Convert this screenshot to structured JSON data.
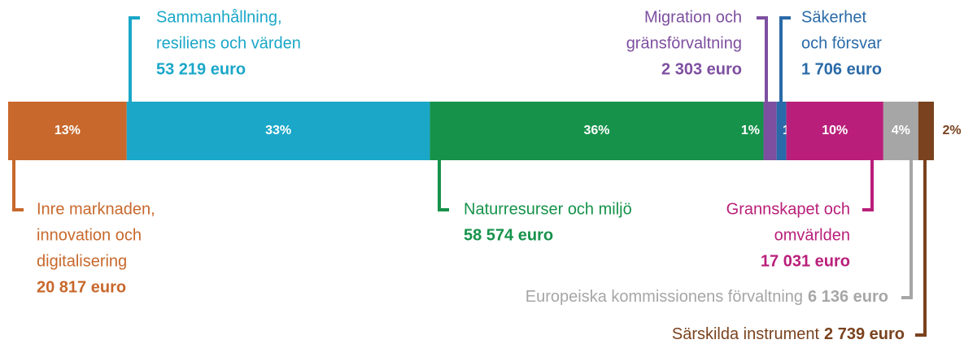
{
  "chart_data": {
    "type": "stacked-bar",
    "series": [
      {
        "name": [
          "Inre marknaden,",
          "innovation och",
          "digitalisering"
        ],
        "color": "#c8682c",
        "values": [
          20817
        ],
        "value_labels": [
          "20 817 euro"
        ],
        "percentages": [
          13
        ],
        "percentage_labels": [
          "13%"
        ]
      },
      {
        "name": [
          "Sammanhållning,",
          "resiliens och värden"
        ],
        "color": "#1aa7c8",
        "values": [
          53219
        ],
        "value_labels": [
          "53 219 euro"
        ],
        "percentages": [
          33
        ],
        "percentage_labels": [
          "33%"
        ]
      },
      {
        "name": [
          "Naturresurser och miljö"
        ],
        "color": "#16924a",
        "values": [
          58574
        ],
        "value_labels": [
          "58 574 euro"
        ],
        "percentages": [
          36
        ],
        "percentage_labels": [
          "36%"
        ]
      },
      {
        "name": [
          "Migration och",
          "gränsförvaltning"
        ],
        "color": "#7d4fa0",
        "values": [
          2303
        ],
        "value_labels": [
          "2 303 euro"
        ],
        "percentages": [
          1
        ],
        "percentage_labels": [
          "1%"
        ]
      },
      {
        "name": [
          "Säkerhet",
          "och försvar"
        ],
        "color": "#2a6aa8",
        "values": [
          1706
        ],
        "value_labels": [
          "1 706 euro"
        ],
        "percentages": [
          1
        ],
        "percentage_labels": [
          "1%"
        ]
      },
      {
        "name": [
          "Grannskapet och",
          "omvärlden"
        ],
        "color": "#b91f7a",
        "values": [
          17031
        ],
        "value_labels": [
          "17 031 euro"
        ],
        "percentages": [
          10
        ],
        "percentage_labels": [
          "10%"
        ]
      },
      {
        "name": [
          "Europeiska kommissionens förvaltning"
        ],
        "color": "#a6a6a6",
        "values": [
          6136
        ],
        "value_labels": [
          "6 136 euro"
        ],
        "percentages": [
          4
        ],
        "percentage_labels": [
          "4%"
        ]
      },
      {
        "name": [
          "Särskilda instrument"
        ],
        "color": "#7a421e",
        "values": [
          2739
        ],
        "value_labels": [
          "2 739 euro"
        ],
        "percentages": [
          2
        ],
        "percentage_labels": [
          "2%"
        ]
      }
    ]
  }
}
